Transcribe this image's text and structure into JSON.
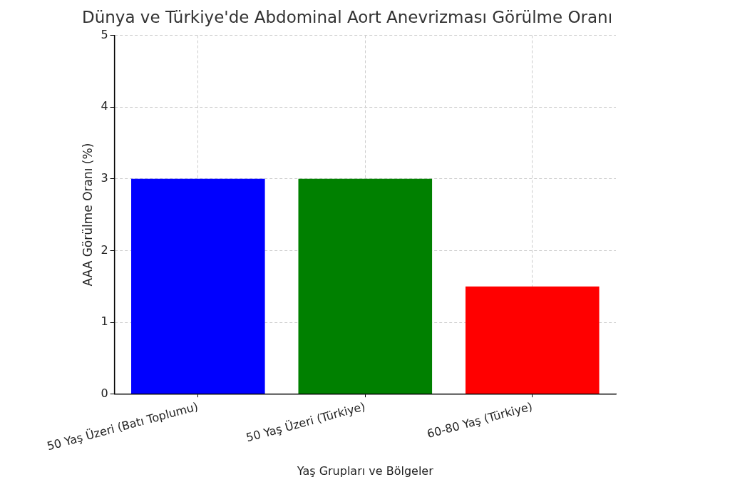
{
  "chart_data": {
    "type": "bar",
    "title": "Dünya ve Türkiye'de Abdominal Aort Anevrizması Görülme Oranı",
    "xlabel": "Yaş Grupları ve Bölgeler",
    "ylabel": "AAA Görülme Oranı (%)",
    "categories": [
      "50 Yaş Üzeri (Batı Toplumu)",
      "50 Yaş Üzeri (Türkiye)",
      "60-80 Yaş (Türkiye)"
    ],
    "values": [
      3,
      3,
      1.5
    ],
    "colors": [
      "#0000ff",
      "#008000",
      "#ff0000"
    ],
    "ylim": [
      0,
      5
    ],
    "yticks": [
      0,
      1,
      2,
      3,
      4,
      5
    ],
    "grid": true
  }
}
